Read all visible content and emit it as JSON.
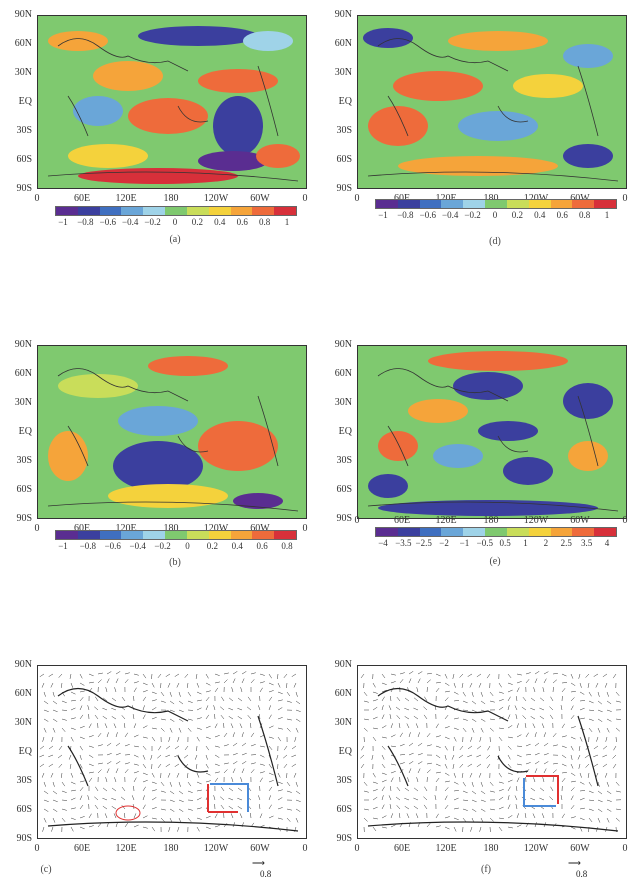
{
  "lat_labels": [
    "90N",
    "60N",
    "30N",
    "EQ",
    "30S",
    "60S",
    "90S"
  ],
  "lon_labels": [
    "0",
    "60E",
    "120E",
    "180",
    "120W",
    "60W",
    "0"
  ],
  "panels": {
    "a": {
      "caption": "(a)",
      "colorbar_ticks": [
        "−1",
        "−0.8",
        "−0.6",
        "−0.4",
        "−0.2",
        "0",
        "0.2",
        "0.4",
        "0.6",
        "0.8",
        "1"
      ]
    },
    "b": {
      "caption": "(b)",
      "colorbar_ticks": [
        "−1",
        "−0.8",
        "−0.6",
        "−0.4",
        "−0.2",
        "0",
        "0.2",
        "0.4",
        "0.6",
        "0.8"
      ]
    },
    "c": {
      "caption": "(c)",
      "ref_value": "0.8"
    },
    "d": {
      "caption": "(d)",
      "colorbar_ticks": [
        "−1",
        "−0.8",
        "−0.6",
        "−0.4",
        "−0.2",
        "0",
        "0.2",
        "0.4",
        "0.6",
        "0.8",
        "1"
      ]
    },
    "e": {
      "caption": "(e)",
      "colorbar_ticks": [
        "−4",
        "−3.5",
        "−2.5",
        "−2",
        "−1",
        "−0.5",
        "0.5",
        "1",
        "2",
        "2.5",
        "3.5",
        "4"
      ]
    },
    "f": {
      "caption": "(f)",
      "ref_value": "0.8"
    }
  },
  "colors": {
    "colorbar": [
      "#5a2d91",
      "#3b3f9e",
      "#3f6fc0",
      "#6aa6d8",
      "#9fd3e8",
      "#7fc96f",
      "#c9dd5a",
      "#f4d23c",
      "#f5a43a",
      "#ee6b3b",
      "#d7303a"
    ],
    "vector_line": "#333333",
    "anomaly_red": "#e03030",
    "anomaly_blue": "#4a8ad8"
  }
}
